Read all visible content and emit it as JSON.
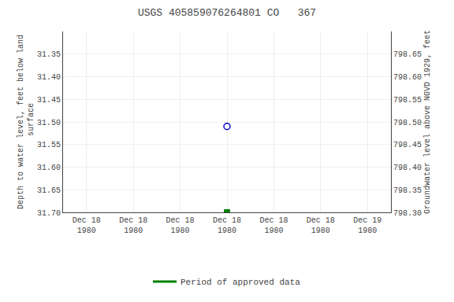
{
  "chart_data": {
    "type": "scatter",
    "title": "USGS 405859076264801 CO   367",
    "categories": [
      "Dec 18\n1980",
      "Dec 18\n1980",
      "Dec 18\n1980",
      "Dec 18\n1980",
      "Dec 18\n1980",
      "Dec 18\n1980",
      "Dec 19\n1980"
    ],
    "series": [
      {
        "color": "#0000cc",
        "marker": "open_circle",
        "values": [
          null,
          null,
          null,
          31.51,
          null,
          null,
          null
        ]
      },
      {
        "color": "#008000",
        "marker": "square",
        "values": [
          null,
          null,
          null,
          31.7,
          null,
          null,
          null
        ]
      },
      {
        "name": "Period of approved data",
        "type": "line",
        "color": "#008000",
        "values": [
          null,
          null,
          null,
          null,
          null,
          null,
          null
        ]
      }
    ],
    "y_label": "Depth to water level, feet below land\n surface",
    "y2_label": "Groundwater level above NGVD 1929, feet",
    "ylim": [
      31.7,
      31.3
    ],
    "yticks": [
      31.35,
      {
        "value": 31.4,
        "label": "31.40"
      },
      31.45,
      {
        "value": 31.5,
        "label": "31.50"
      },
      31.55,
      {
        "value": 31.6,
        "label": "31.60"
      },
      31.65,
      {
        "value": 31.7,
        "label": "31.70"
      }
    ],
    "y2lim": [
      798.3,
      798.7
    ],
    "y2ticks": [
      798.65,
      {
        "value": 798.6,
        "label": "798.60"
      },
      798.55,
      {
        "value": 798.5,
        "label": "798.50"
      },
      798.45,
      {
        "value": 798.4,
        "label": "798.40"
      },
      798.35,
      {
        "value": 798.3,
        "label": "798.30"
      }
    ],
    "grid": true,
    "legend": "bottom"
  }
}
